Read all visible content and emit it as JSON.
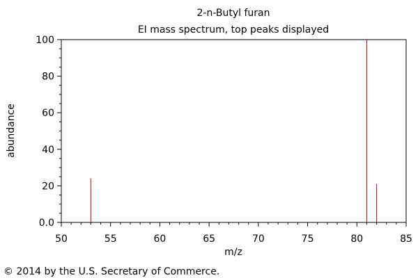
{
  "chart_data": {
    "type": "bar",
    "subtype": "mass-spectrum-stick",
    "title": "2-n-Butyl furan",
    "subtitle": "EI mass spectrum, top peaks displayed",
    "xlabel": "m/z",
    "ylabel": "abundance",
    "xlim": [
      50,
      85
    ],
    "ylim": [
      0,
      100
    ],
    "xticks": [
      50,
      55,
      60,
      65,
      70,
      75,
      80,
      85
    ],
    "yticks": [
      0.0,
      20,
      40,
      60,
      80,
      100
    ],
    "ytick_labels": [
      "0.0",
      "20",
      "40",
      "60",
      "80",
      "100"
    ],
    "grid": false,
    "legend": "none",
    "points": [
      {
        "x": 53,
        "y": 24
      },
      {
        "x": 81,
        "y": 100
      },
      {
        "x": 82,
        "y": 21
      }
    ],
    "colors": {
      "peak": "#cc0000",
      "axis": "#000000"
    }
  },
  "footer": {
    "copyright": "© 2014 by the U.S. Secretary of Commerce."
  }
}
